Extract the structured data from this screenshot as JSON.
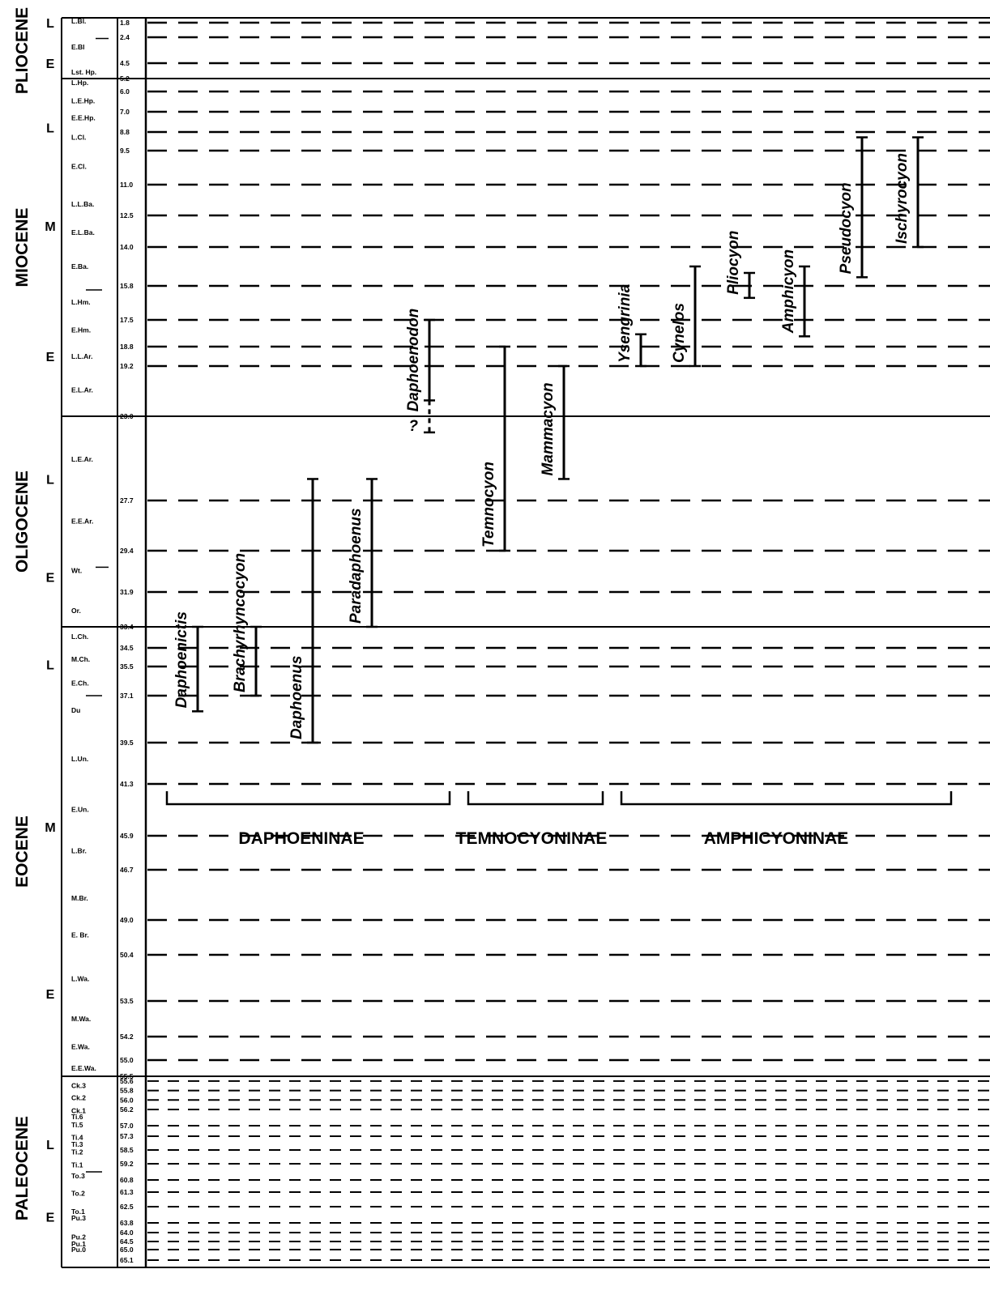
{
  "epochs": [
    {
      "name": "PLIOCENE",
      "subs": [
        {
          "label": "L",
          "age": 1.8
        },
        {
          "label": "E",
          "age": 4.5
        }
      ],
      "from": 1.8,
      "to": 5.2
    },
    {
      "name": "MIOCENE",
      "subs": [
        {
          "label": "L",
          "age": 8.4
        },
        {
          "label": "M",
          "age": 13.0
        },
        {
          "label": "E",
          "age": 19.0
        }
      ],
      "from": 5.2,
      "to": 23.0
    },
    {
      "name": "OLIGOCENE",
      "subs": [
        {
          "label": "L",
          "age": 26.5
        },
        {
          "label": "E",
          "age": 31.0
        }
      ],
      "from": 23.0,
      "to": 33.4
    },
    {
      "name": "EOCENE",
      "subs": [
        {
          "label": "L",
          "age": 35.4
        },
        {
          "label": "M",
          "age": 45.1
        },
        {
          "label": "E",
          "age": 53.0
        }
      ],
      "from": 33.4,
      "to": 55.5
    },
    {
      "name": "PALEOCENE",
      "subs": [
        {
          "label": "L",
          "age": 58.0
        },
        {
          "label": "E",
          "age": 63.3
        }
      ],
      "from": 55.5,
      "to": 65.1
    }
  ],
  "nalma": [
    {
      "label": "L.Bl.",
      "age": 1.7
    },
    {
      "label": "E.Bl",
      "age": 3.2
    },
    {
      "label": "Lst. Hp.",
      "age": 4.9
    },
    {
      "label": "L.Hp.",
      "age": 5.45
    },
    {
      "label": "L.E.Hp.",
      "age": 6.45
    },
    {
      "label": "E.E.Hp.",
      "age": 7.55
    },
    {
      "label": "L.Cl.",
      "age": 9.0
    },
    {
      "label": "E.Cl.",
      "age": 10.2
    },
    {
      "label": "L.L.Ba.",
      "age": 11.95
    },
    {
      "label": "E.L.Ba.",
      "age": 13.3
    },
    {
      "label": "E.Ba.",
      "age": 14.9
    },
    {
      "label": "L.Hm.",
      "age": 16.6
    },
    {
      "label": "E.Hm.",
      "age": 18.0
    },
    {
      "label": "L.L.Ar.",
      "age": 19.0
    },
    {
      "label": "E.L.Ar.",
      "age": 21.0
    },
    {
      "label": "L.E.Ar.",
      "age": 25.4
    },
    {
      "label": "E.E.Ar.",
      "age": 28.4
    },
    {
      "label": "Wt.",
      "age": 30.6
    },
    {
      "label": "Or.",
      "age": 32.7
    },
    {
      "label": "L.Ch.",
      "age": 33.9
    },
    {
      "label": "M.Ch.",
      "age": 35.1
    },
    {
      "label": "E.Ch.",
      "age": 36.4
    },
    {
      "label": "Du",
      "age": 37.85
    },
    {
      "label": "L.Un.",
      "age": 40.2
    },
    {
      "label": "E.Un.",
      "age": 43.55
    },
    {
      "label": "L.Br.",
      "age": 46.25
    },
    {
      "label": "M.Br.",
      "age": 48.0
    },
    {
      "label": "E. Br.",
      "age": 49.6
    },
    {
      "label": "L.Wa.",
      "age": 52.0
    },
    {
      "label": "M.Wa.",
      "age": 53.85
    },
    {
      "label": "E.Wa.",
      "age": 54.55
    },
    {
      "label": "E.E.Wa.",
      "age": 55.25
    },
    {
      "label": "Ck.3",
      "age": 55.7
    },
    {
      "label": "Ck.2",
      "age": 55.95
    },
    {
      "label": "Ck.1",
      "age": 56.25
    },
    {
      "label": "Ti.6",
      "age": 56.55
    },
    {
      "label": "Ti.5",
      "age": 56.95
    },
    {
      "label": "Ti.4",
      "age": 57.4
    },
    {
      "label": "Ti.3",
      "age": 58.0
    },
    {
      "label": "Ti.2",
      "age": 58.6
    },
    {
      "label": "Ti.1",
      "age": 59.3
    },
    {
      "label": "To.3",
      "age": 60.4
    },
    {
      "label": "To.2",
      "age": 61.4
    },
    {
      "label": "To.1",
      "age": 62.9
    },
    {
      "label": "Pu.3",
      "age": 63.4
    },
    {
      "label": "Pu.2",
      "age": 64.25
    },
    {
      "label": "Pu.1",
      "age": 64.65
    },
    {
      "label": "Pu.0",
      "age": 65.0
    }
  ],
  "nalma_bounds": [
    2.5,
    30.4
  ],
  "ages": [
    {
      "label": "1.8",
      "age": 1.8
    },
    {
      "label": "2.4",
      "age": 2.4
    },
    {
      "label": "4.5",
      "age": 4.5
    },
    {
      "label": "5.2",
      "age": 5.2
    },
    {
      "label": "6.0",
      "age": 6.0
    },
    {
      "label": "7.0",
      "age": 7.0
    },
    {
      "label": "8.8",
      "age": 8.8
    },
    {
      "label": "9.5",
      "age": 9.5
    },
    {
      "label": "11.0",
      "age": 11.0
    },
    {
      "label": "12.5",
      "age": 12.5
    },
    {
      "label": "14.0",
      "age": 14.0
    },
    {
      "label": "15.8",
      "age": 15.8
    },
    {
      "label": "17.5",
      "age": 17.5
    },
    {
      "label": "18.8",
      "age": 18.8
    },
    {
      "label": "19.2",
      "age": 19.2
    },
    {
      "label": "23.0",
      "age": 23.0
    },
    {
      "label": "27.7",
      "age": 27.7
    },
    {
      "label": "29.4",
      "age": 29.4
    },
    {
      "label": "31.9",
      "age": 31.9
    },
    {
      "label": "33.4",
      "age": 33.4
    },
    {
      "label": "34.5",
      "age": 34.5
    },
    {
      "label": "35.5",
      "age": 35.5
    },
    {
      "label": "37.1",
      "age": 37.1
    },
    {
      "label": "39.5",
      "age": 39.5
    },
    {
      "label": "41.3",
      "age": 41.3
    },
    {
      "label": "45.9",
      "age": 45.9
    },
    {
      "label": "46.7",
      "age": 46.7
    },
    {
      "label": "49.0",
      "age": 49.0
    },
    {
      "label": "50.4",
      "age": 50.4
    },
    {
      "label": "53.5",
      "age": 53.5
    },
    {
      "label": "54.2",
      "age": 54.2
    },
    {
      "label": "55.0",
      "age": 55.0
    },
    {
      "label": "55.5",
      "age": 55.5
    },
    {
      "label": "55.6",
      "age": 55.6
    },
    {
      "label": "55.8",
      "age": 55.8
    },
    {
      "label": "56.0",
      "age": 56.0
    },
    {
      "label": "56.2",
      "age": 56.2
    },
    {
      "label": "57.0",
      "age": 57.0
    },
    {
      "label": "57.3",
      "age": 57.3
    },
    {
      "label": "58.5",
      "age": 58.5
    },
    {
      "label": "59.2",
      "age": 59.2
    },
    {
      "label": "60.8",
      "age": 60.8
    },
    {
      "label": "61.3",
      "age": 61.3
    },
    {
      "label": "62.5",
      "age": 62.5
    },
    {
      "label": "63.8",
      "age": 63.8
    },
    {
      "label": "64.0",
      "age": 64.0
    },
    {
      "label": "64.5",
      "age": 64.5
    },
    {
      "label": "65.0",
      "age": 65.0
    },
    {
      "label": "65.1",
      "age": 65.1
    }
  ],
  "solid_boundaries": [
    5.2,
    23.0,
    33.4,
    55.5
  ],
  "genera": [
    {
      "name": "Daphoenictis",
      "from": 33.4,
      "to": 37.9
    },
    {
      "name": "Brachyrhyncocyon",
      "from": 33.4,
      "to": 37.1
    },
    {
      "name": "Daphoenus",
      "from": 26.5,
      "to": 39.5
    },
    {
      "name": "Paradaphoenus",
      "from": 26.5,
      "to": 33.4
    },
    {
      "name": "Daphoenodon",
      "from": 17.5,
      "to": 21.8,
      "query": "?",
      "query_from": 21.8,
      "query_to": 23.9
    },
    {
      "name": "Temnocyon",
      "from": 18.8,
      "to": 29.4
    },
    {
      "name": "Mammacyon",
      "from": 19.2,
      "to": 26.5
    },
    {
      "name": "Ysengrinia",
      "from": 18.2,
      "to": 19.2
    },
    {
      "name": "Cynelos",
      "from": 14.9,
      "to": 19.2
    },
    {
      "name": "Pliocyon",
      "from": 15.2,
      "to": 16.4
    },
    {
      "name": "Amphicyon",
      "from": 14.9,
      "to": 18.3
    },
    {
      "name": "Pseudocyon",
      "from": 9.0,
      "to": 15.4
    },
    {
      "name": "Ischyrocyon",
      "from": 9.0,
      "to": 14.0
    }
  ],
  "families": [
    {
      "name": "DAPHOENINAE",
      "from_genus": 0,
      "to_genus": 4
    },
    {
      "name": "TEMNOCYONINAE",
      "from_genus": 5,
      "to_genus": 6
    },
    {
      "name": "AMPHICYONINAE",
      "from_genus": 7,
      "to_genus": 12
    }
  ]
}
